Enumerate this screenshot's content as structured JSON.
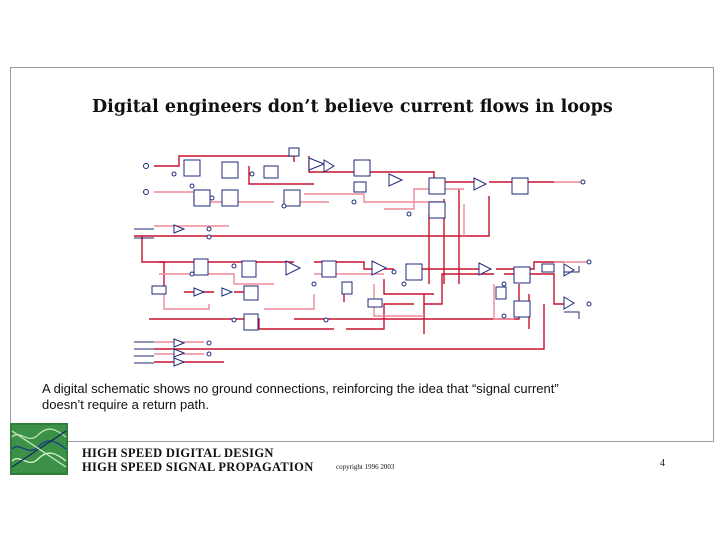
{
  "slide": {
    "title": "Digital engineers don’t believe current flows in loops",
    "caption_line1": "A digital schematic shows no ground connections, reinforcing the idea that “signal current”",
    "caption_line2": "doesn’t require a return path.",
    "footer_line1": "HIGH SPEED DIGITAL DESIGN",
    "footer_line2": "HIGH SPEED SIGNAL PROPAGATION",
    "copyright": "copyright 1996 2003",
    "page_number": "4"
  },
  "colors": {
    "wire_red": "#c8102e",
    "wire_pink": "#f08a96",
    "symbol_blue": "#1e2a78",
    "logo_green": "#2f7f3a"
  },
  "icons": {
    "logo": "waveform-logo"
  }
}
